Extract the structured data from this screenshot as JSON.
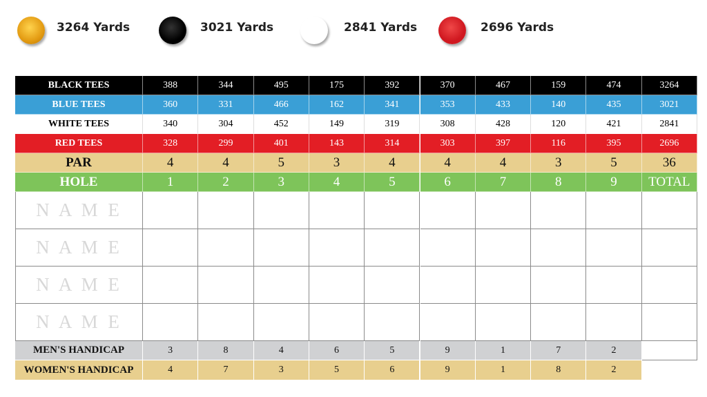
{
  "legend": [
    {
      "label": "3264 Yards"
    },
    {
      "label": "3021 Yards"
    },
    {
      "label": "2841 Yards"
    },
    {
      "label": "2696 Yards"
    }
  ],
  "scorecard": {
    "rows": [
      {
        "label": "BLACK TEES",
        "holes": [
          388,
          344,
          495,
          175,
          392,
          370,
          467,
          159,
          474
        ],
        "total": 3264
      },
      {
        "label": "BLUE TEES",
        "holes": [
          360,
          331,
          466,
          162,
          341,
          353,
          433,
          140,
          435
        ],
        "total": 3021
      },
      {
        "label": "WHITE TEES",
        "holes": [
          340,
          304,
          452,
          149,
          319,
          308,
          428,
          120,
          421
        ],
        "total": 2841
      },
      {
        "label": "RED TEES",
        "holes": [
          328,
          299,
          401,
          143,
          314,
          303,
          397,
          116,
          395
        ],
        "total": 2696
      },
      {
        "label": "PAR",
        "holes": [
          4,
          4,
          5,
          3,
          4,
          4,
          4,
          3,
          5
        ],
        "total": 36
      },
      {
        "label": "HOLE",
        "holes": [
          1,
          2,
          3,
          4,
          5,
          6,
          7,
          8,
          9
        ],
        "total": "TOTAL"
      }
    ],
    "name_rows": [
      "N A M E",
      "N A M E",
      "N A M E",
      "N A M E"
    ],
    "handicap_rows": [
      {
        "label": "MEN'S HANDICAP",
        "holes": [
          3,
          8,
          4,
          6,
          5,
          9,
          1,
          7,
          2
        ]
      },
      {
        "label": "WOMEN'S HANDICAP",
        "holes": [
          4,
          7,
          3,
          5,
          6,
          9,
          1,
          8,
          2
        ]
      }
    ]
  }
}
